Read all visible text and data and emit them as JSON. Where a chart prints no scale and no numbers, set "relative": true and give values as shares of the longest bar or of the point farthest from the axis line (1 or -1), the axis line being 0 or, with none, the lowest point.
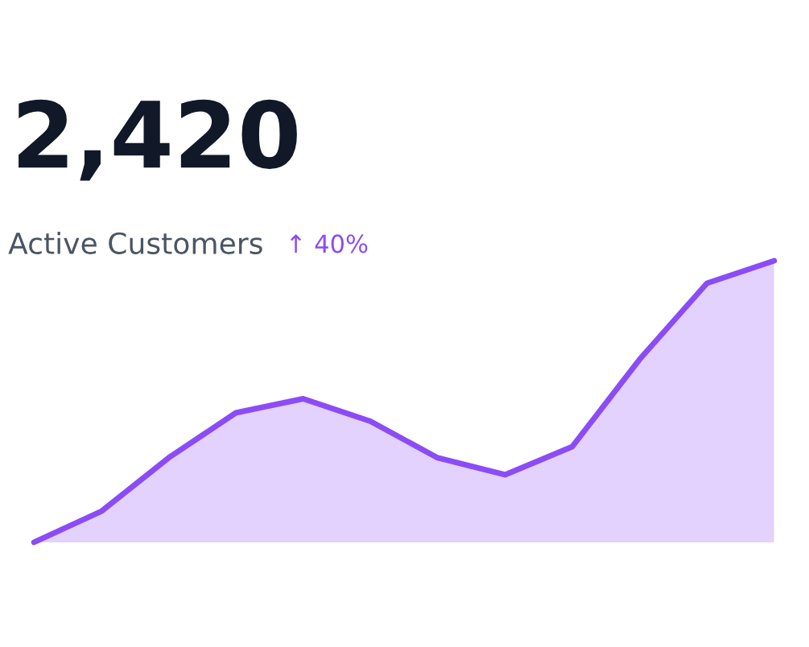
{
  "chart_data": {
    "type": "area",
    "title": "2,420",
    "subtitle": "Active Customers",
    "annotations": [
      "↑ 40%"
    ],
    "categories": [
      null,
      null,
      null,
      null,
      null,
      null,
      null,
      null,
      null,
      null,
      null,
      null
    ],
    "values": [
      0,
      0.11,
      0.3,
      0.46,
      0.51,
      0.43,
      0.3,
      0.24,
      0.34,
      0.65,
      0.92,
      1.0
    ],
    "color": "#8b4cf7",
    "relative": true
  }
}
